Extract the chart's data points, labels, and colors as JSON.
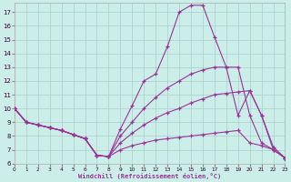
{
  "xlabel": "Windchill (Refroidissement éolien,°C)",
  "bg_color": "#cceee8",
  "line_color": "#993399",
  "grid_color": "#aacccc",
  "xlim": [
    0,
    23
  ],
  "ylim": [
    6,
    17.7
  ],
  "yticks": [
    6,
    7,
    8,
    9,
    10,
    11,
    12,
    13,
    14,
    15,
    16,
    17
  ],
  "xticks": [
    0,
    1,
    2,
    3,
    4,
    5,
    6,
    7,
    8,
    9,
    10,
    11,
    12,
    13,
    14,
    15,
    16,
    17,
    18,
    19,
    20,
    21,
    22,
    23
  ],
  "lines": [
    {
      "x": [
        0,
        1,
        2,
        3,
        4,
        5,
        6,
        7,
        8,
        9,
        10,
        11,
        12,
        13,
        14,
        15,
        16,
        17,
        18,
        19,
        20,
        21,
        22,
        23
      ],
      "y": [
        10.0,
        9.0,
        8.8,
        8.6,
        8.4,
        8.1,
        7.8,
        6.6,
        6.5,
        8.5,
        10.2,
        12.0,
        12.5,
        14.5,
        17.0,
        17.5,
        17.5,
        15.2,
        13.0,
        9.5,
        11.3,
        9.5,
        7.2,
        6.4
      ]
    },
    {
      "x": [
        0,
        1,
        2,
        3,
        4,
        5,
        6,
        7,
        8,
        9,
        10,
        11,
        12,
        13,
        14,
        15,
        16,
        17,
        18,
        19,
        20,
        21,
        22,
        23
      ],
      "y": [
        10.0,
        9.0,
        8.8,
        8.6,
        8.4,
        8.1,
        7.8,
        6.6,
        6.5,
        8.0,
        9.0,
        10.0,
        10.8,
        11.5,
        12.0,
        12.5,
        12.8,
        13.0,
        13.0,
        13.0,
        9.5,
        7.5,
        7.0,
        6.4
      ]
    },
    {
      "x": [
        0,
        1,
        2,
        3,
        4,
        5,
        6,
        7,
        8,
        9,
        10,
        11,
        12,
        13,
        14,
        15,
        16,
        17,
        18,
        19,
        20,
        21,
        22,
        23
      ],
      "y": [
        10.0,
        9.0,
        8.8,
        8.6,
        8.4,
        8.1,
        7.8,
        6.6,
        6.5,
        7.5,
        8.2,
        8.8,
        9.3,
        9.7,
        10.0,
        10.4,
        10.7,
        11.0,
        11.1,
        11.2,
        11.3,
        9.5,
        7.0,
        6.4
      ]
    },
    {
      "x": [
        0,
        1,
        2,
        3,
        4,
        5,
        6,
        7,
        8,
        9,
        10,
        11,
        12,
        13,
        14,
        15,
        16,
        17,
        18,
        19,
        20,
        21,
        22,
        23
      ],
      "y": [
        10.0,
        9.0,
        8.8,
        8.6,
        8.4,
        8.1,
        7.8,
        6.6,
        6.5,
        7.0,
        7.3,
        7.5,
        7.7,
        7.8,
        7.9,
        8.0,
        8.1,
        8.2,
        8.3,
        8.4,
        7.5,
        7.3,
        7.0,
        6.4
      ]
    }
  ]
}
